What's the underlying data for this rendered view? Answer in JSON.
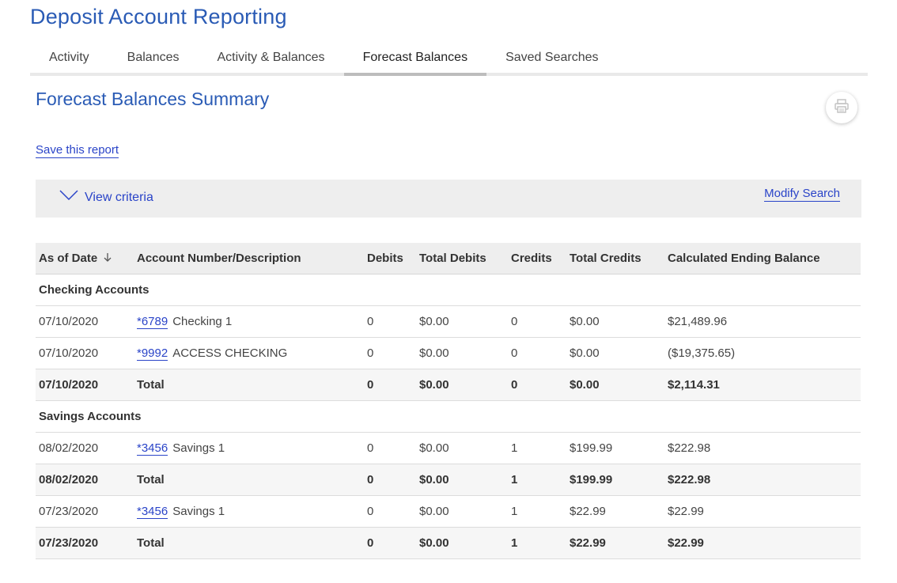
{
  "app": {
    "title": "Deposit Account Reporting"
  },
  "tabs": [
    {
      "label": "Activity"
    },
    {
      "label": "Balances"
    },
    {
      "label": "Activity & Balances"
    },
    {
      "label": "Forecast Balances",
      "active": true
    },
    {
      "label": "Saved Searches"
    }
  ],
  "page": {
    "title": "Forecast Balances Summary",
    "print_icon": "printer-icon",
    "save_link": "Save this report"
  },
  "criteria": {
    "toggle_label": "View criteria",
    "toggle_icon": "chevron-down-icon",
    "modify_link": "Modify Search"
  },
  "table": {
    "headers": {
      "as_of_date": "As of Date",
      "account": "Account Number/Description",
      "debits": "Debits",
      "total_debits": "Total Debits",
      "credits": "Credits",
      "total_credits": "Total Credits",
      "ending_balance": "Calculated Ending Balance"
    },
    "sort_icon": "arrow-down-icon",
    "groups": {
      "checking": {
        "label": "Checking Accounts",
        "rows": [
          {
            "date": "07/10/2020",
            "account": "*6789",
            "desc": "Checking 1",
            "debits": "0",
            "total_debits": "$0.00",
            "credits": "0",
            "total_credits": "$0.00",
            "ending": "$21,489.96"
          },
          {
            "date": "07/10/2020",
            "account": "*9992",
            "desc": "ACCESS CHECKING",
            "debits": "0",
            "total_debits": "$0.00",
            "credits": "0",
            "total_credits": "$0.00",
            "ending": "($19,375.65)"
          }
        ],
        "total": {
          "date": "07/10/2020",
          "label": "Total",
          "debits": "0",
          "total_debits": "$0.00",
          "credits": "0",
          "total_credits": "$0.00",
          "ending": "$2,114.31"
        }
      },
      "savings": {
        "label": "Savings Accounts",
        "row1": {
          "date": "08/02/2020",
          "account": "*3456",
          "desc": "Savings 1",
          "debits": "0",
          "total_debits": "$0.00",
          "credits": "1",
          "total_credits": "$199.99",
          "ending": "$222.98"
        },
        "total1": {
          "date": "08/02/2020",
          "label": "Total",
          "debits": "0",
          "total_debits": "$0.00",
          "credits": "1",
          "total_credits": "$199.99",
          "ending": "$222.98"
        },
        "row2": {
          "date": "07/23/2020",
          "account": "*3456",
          "desc": "Savings 1",
          "debits": "0",
          "total_debits": "$0.00",
          "credits": "1",
          "total_credits": "$22.99",
          "ending": "$22.99"
        },
        "total2": {
          "date": "07/23/2020",
          "label": "Total",
          "debits": "0",
          "total_debits": "$0.00",
          "credits": "1",
          "total_credits": "$22.99",
          "ending": "$22.99"
        }
      }
    }
  },
  "colors": {
    "accent": "#2a5bb5",
    "link": "#2a44c8",
    "header_bg": "#eeeeee",
    "total_bg": "#f6f6f6"
  }
}
